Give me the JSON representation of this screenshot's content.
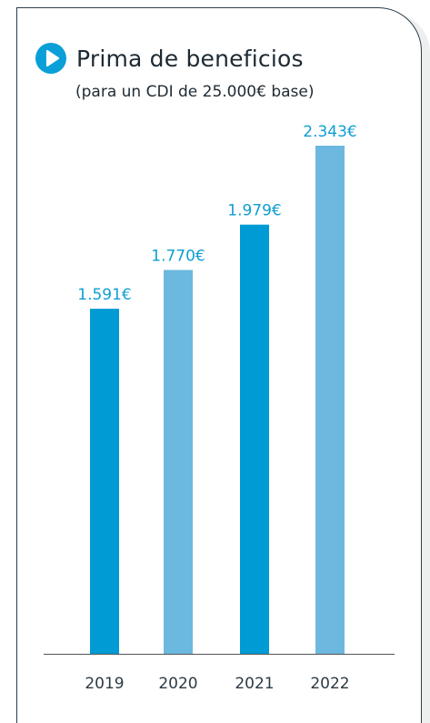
{
  "header": {
    "title": "Prima de beneficios",
    "subtitle": "(para un CDI de 25.000€ base)",
    "icon": "play-circle-icon"
  },
  "colors": {
    "bar_dark": "#009ad4",
    "bar_light": "#6cb8df",
    "label": "#0f9ed3",
    "axis": "#555555"
  },
  "chart_data": {
    "type": "bar",
    "categories": [
      "2019",
      "2020",
      "2021",
      "2022"
    ],
    "values": [
      1591,
      1770,
      1979,
      2343
    ],
    "value_labels": [
      "1.591€",
      "1.770€",
      "1.979€",
      "2.343€"
    ],
    "title": "Prima de beneficios",
    "subtitle": "(para un CDI de 25.000€ base)",
    "xlabel": "",
    "ylabel": "",
    "ylim": [
      0,
      2570
    ],
    "grid": false,
    "legend": "none"
  }
}
